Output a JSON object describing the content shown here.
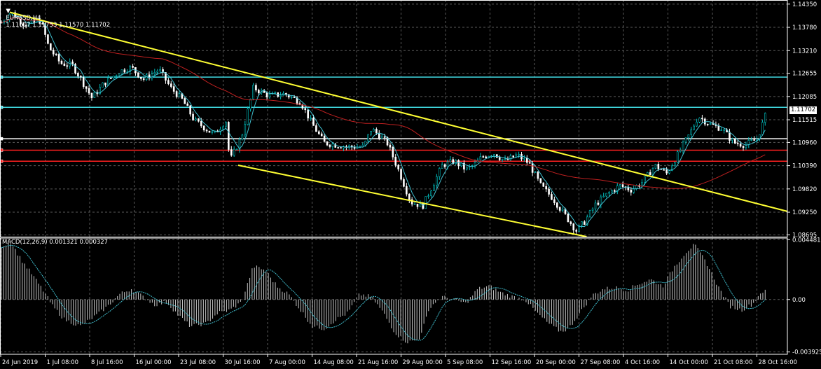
{
  "header": {
    "symbol": "EURUSD,H4",
    "ohlc": "1.11607 1.11753 1.11570 1.11702",
    "dropdown_icon": "triangle-down-icon"
  },
  "indicator": {
    "label": "MACD(12,26,9) 0.001321 0.000327"
  },
  "current_price": "1.11702",
  "colors": {
    "background": "#000000",
    "grid": "#5a5a5a",
    "candle_up": "#00c0c0",
    "candle_down": "#ffffff",
    "fast_ma": "#40c0d0",
    "slow_ma": "#c02020",
    "trendline": "#ffff33",
    "level_cyan": "#40d8e0",
    "level_red": "#ff2020",
    "level_white": "#ffffff",
    "macd_hist": "#c8c8c8",
    "macd_signal": "#40c0d0"
  },
  "chart_data": {
    "type": "candlestick",
    "price_axis_ticks": [
      "1.14350",
      "1.13780",
      "1.13210",
      "1.12655",
      "1.12085",
      "1.11515",
      "1.10960",
      "1.10390",
      "1.09820",
      "1.09250",
      "1.08695"
    ],
    "price_range": [
      1.0865,
      1.1445
    ],
    "macd_axis_ticks": [
      "0.004481",
      "0.00",
      "-0.003925"
    ],
    "macd_range": [
      -0.0041,
      0.0046
    ],
    "time_labels": [
      "24 Jun 2019",
      "1 Jul 08:00",
      "8 Jul 16:00",
      "16 Jul 00:00",
      "23 Jul 08:00",
      "30 Jul 16:00",
      "7 Aug 00:00",
      "14 Aug 08:00",
      "21 Aug 16:00",
      "29 Aug 00:00",
      "5 Sep 08:00",
      "12 Sep 16:00",
      "20 Sep 00:00",
      "27 Sep 08:00",
      "4 Oct 16:00",
      "14 Oct 00:00",
      "21 Oct 08:00",
      "28 Oct 16:00"
    ],
    "horizontal_levels": [
      {
        "price": 1.1256,
        "color": "cyan"
      },
      {
        "price": 1.1182,
        "color": "cyan"
      },
      {
        "price": 1.1105,
        "color": "white"
      },
      {
        "price": 1.1077,
        "color": "red"
      },
      {
        "price": 1.105,
        "color": "red"
      }
    ],
    "trendlines": [
      {
        "from": [
          0,
          1.1415
        ],
        "to": [
          1,
          1.0927
        ]
      },
      {
        "from": [
          0.29,
          1.104
        ],
        "to": [
          0.745,
          1.0865
        ]
      }
    ],
    "price_path": [
      [
        0,
        1.139
      ],
      [
        0.012,
        1.1415
      ],
      [
        0.03,
        1.1385
      ],
      [
        0.05,
        1.1395
      ],
      [
        0.06,
        1.133
      ],
      [
        0.075,
        1.129
      ],
      [
        0.09,
        1.1285
      ],
      [
        0.1,
        1.1255
      ],
      [
        0.115,
        1.1205
      ],
      [
        0.13,
        1.124
      ],
      [
        0.15,
        1.127
      ],
      [
        0.165,
        1.128
      ],
      [
        0.18,
        1.125
      ],
      [
        0.2,
        1.1275
      ],
      [
        0.215,
        1.123
      ],
      [
        0.23,
        1.12
      ],
      [
        0.245,
        1.115
      ],
      [
        0.27,
        1.1115
      ],
      [
        0.285,
        1.115
      ],
      [
        0.29,
        1.105
      ],
      [
        0.305,
        1.111
      ],
      [
        0.32,
        1.123
      ],
      [
        0.34,
        1.121
      ],
      [
        0.36,
        1.1215
      ],
      [
        0.38,
        1.1195
      ],
      [
        0.395,
        1.114
      ],
      [
        0.41,
        1.1095
      ],
      [
        0.425,
        1.109
      ],
      [
        0.44,
        1.1085
      ],
      [
        0.46,
        1.1085
      ],
      [
        0.47,
        1.113
      ],
      [
        0.49,
        1.1095
      ],
      [
        0.505,
        1.1025
      ],
      [
        0.52,
        1.095
      ],
      [
        0.535,
        1.094
      ],
      [
        0.55,
        1.1
      ],
      [
        0.56,
        1.104
      ],
      [
        0.575,
        1.105
      ],
      [
        0.59,
        1.103
      ],
      [
        0.6,
        1.104
      ],
      [
        0.61,
        1.106
      ],
      [
        0.625,
        1.107
      ],
      [
        0.64,
        1.105
      ],
      [
        0.655,
        1.1065
      ],
      [
        0.67,
        1.1045
      ],
      [
        0.685,
        1.099
      ],
      [
        0.7,
        1.096
      ],
      [
        0.715,
        1.092
      ],
      [
        0.73,
        1.088
      ],
      [
        0.74,
        1.09
      ],
      [
        0.755,
        1.0945
      ],
      [
        0.77,
        1.097
      ],
      [
        0.785,
        1.099
      ],
      [
        0.8,
        1.098
      ],
      [
        0.815,
        1.1
      ],
      [
        0.83,
        1.104
      ],
      [
        0.845,
        1.102
      ],
      [
        0.86,
        1.107
      ],
      [
        0.875,
        1.112
      ],
      [
        0.885,
        1.116
      ],
      [
        0.9,
        1.114
      ],
      [
        0.915,
        1.113
      ],
      [
        0.93,
        1.1095
      ],
      [
        0.945,
        1.109
      ],
      [
        0.96,
        1.1105
      ],
      [
        0.97,
        1.116
      ]
    ],
    "macd_path": [
      [
        0,
        0.004
      ],
      [
        0.012,
        0.0043
      ],
      [
        0.025,
        0.003
      ],
      [
        0.04,
        0.0018
      ],
      [
        0.055,
        0.0005
      ],
      [
        0.065,
        -0.0005
      ],
      [
        0.08,
        -0.0015
      ],
      [
        0.1,
        -0.002
      ],
      [
        0.12,
        -0.0012
      ],
      [
        0.135,
        -0.0005
      ],
      [
        0.15,
        0.0004
      ],
      [
        0.165,
        0.0008
      ],
      [
        0.18,
        0.0002
      ],
      [
        0.195,
        -0.0004
      ],
      [
        0.21,
        -0.0002
      ],
      [
        0.225,
        -0.0012
      ],
      [
        0.24,
        -0.002
      ],
      [
        0.26,
        -0.0018
      ],
      [
        0.275,
        -0.001
      ],
      [
        0.29,
        -0.0008
      ],
      [
        0.305,
        -0.0002
      ],
      [
        0.32,
        0.0025
      ],
      [
        0.335,
        0.0022
      ],
      [
        0.35,
        0.001
      ],
      [
        0.365,
        0.0004
      ],
      [
        0.38,
        -0.0008
      ],
      [
        0.395,
        -0.002
      ],
      [
        0.41,
        -0.0022
      ],
      [
        0.425,
        -0.0015
      ],
      [
        0.44,
        -0.001
      ],
      [
        0.455,
        0.0004
      ],
      [
        0.47,
        0.0002
      ],
      [
        0.485,
        -0.001
      ],
      [
        0.5,
        -0.0025
      ],
      [
        0.515,
        -0.0032
      ],
      [
        0.53,
        -0.003
      ],
      [
        0.545,
        -0.0005
      ],
      [
        0.56,
        0.0002
      ],
      [
        0.575,
        0.0
      ],
      [
        0.59,
        -0.0003
      ],
      [
        0.605,
        0.0008
      ],
      [
        0.62,
        0.001
      ],
      [
        0.635,
        0.0005
      ],
      [
        0.65,
        0.0002
      ],
      [
        0.665,
        0.0
      ],
      [
        0.68,
        -0.001
      ],
      [
        0.695,
        -0.0018
      ],
      [
        0.71,
        -0.0024
      ],
      [
        0.72,
        -0.0022
      ],
      [
        0.735,
        -0.001
      ],
      [
        0.75,
        0.0003
      ],
      [
        0.765,
        0.0008
      ],
      [
        0.78,
        0.0009
      ],
      [
        0.795,
        0.0007
      ],
      [
        0.81,
        0.0012
      ],
      [
        0.825,
        0.0015
      ],
      [
        0.84,
        0.001
      ],
      [
        0.855,
        0.0025
      ],
      [
        0.87,
        0.0036
      ],
      [
        0.88,
        0.0041
      ],
      [
        0.895,
        0.0028
      ],
      [
        0.91,
        0.001
      ],
      [
        0.925,
        -0.0005
      ],
      [
        0.94,
        -0.0008
      ],
      [
        0.955,
        -0.0003
      ],
      [
        0.965,
        0.0006
      ]
    ]
  }
}
